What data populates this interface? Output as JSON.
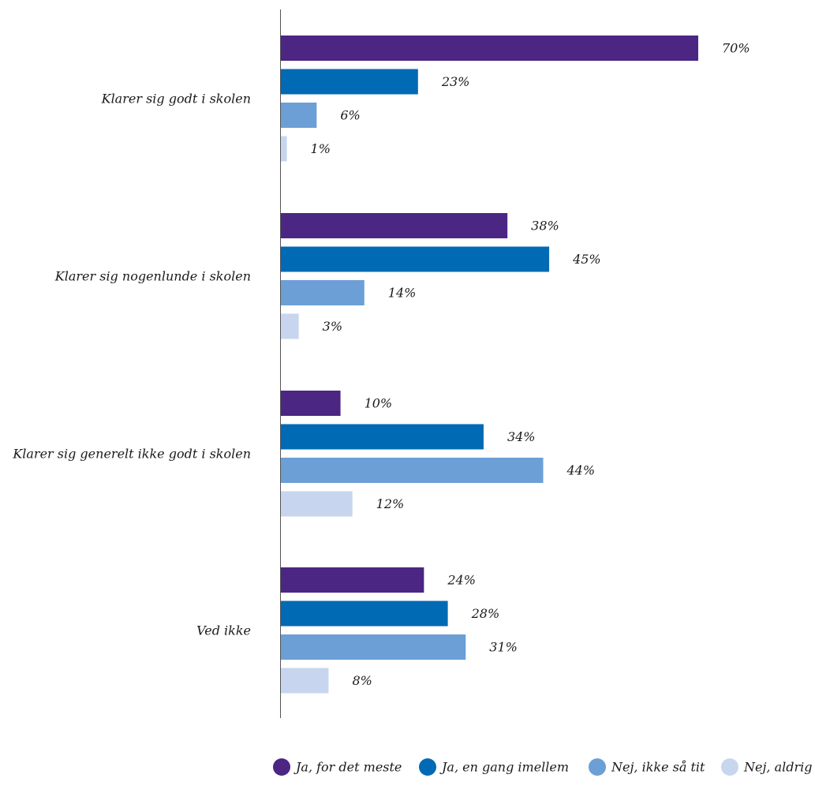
{
  "chart_data": {
    "type": "bar",
    "orientation": "horizontal",
    "categories": [
      "Klarer sig godt i skolen",
      "Klarer sig nogenlunde i skolen",
      "Klarer sig generelt ikke godt i skolen",
      "Ved ikke"
    ],
    "series": [
      {
        "name": "Ja, for det meste",
        "color": "#4b2683",
        "values": [
          70,
          38,
          10,
          24
        ]
      },
      {
        "name": "Ja, en gang imellem",
        "color": "#006ab4",
        "values": [
          23,
          45,
          34,
          28
        ]
      },
      {
        "name": "Nej, ikke så tit",
        "color": "#6b9fd6",
        "values": [
          6,
          14,
          44,
          31
        ]
      },
      {
        "name": "Nej, aldrig",
        "color": "#c7d6ee",
        "values": [
          1,
          3,
          12,
          8
        ]
      }
    ],
    "value_suffix": "%",
    "xlim": [
      0,
      100
    ],
    "title": "",
    "xlabel": "",
    "ylabel": "",
    "grid": false,
    "legend_position": "bottom-right"
  }
}
